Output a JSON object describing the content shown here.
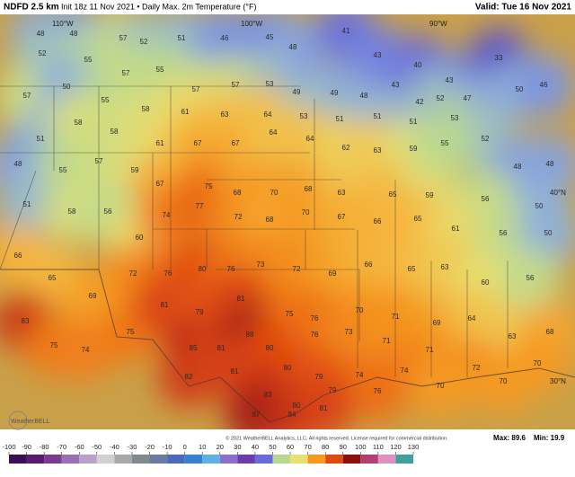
{
  "header": {
    "title": "NDFD 2.5 km",
    "subtitle": "Init 18z 11 Nov 2021 • Daily Max. 2m Temperature (°F)",
    "valid": "Valid: Tue 16 Nov 2021"
  },
  "grid_labels": [
    "110°W",
    "100°W",
    "90°W",
    "40°N",
    "30°N"
  ],
  "logo": "WeatherBELL",
  "copyright": "© 2021 WeatherBELL Analytics, LLC. All rights reserved. License required for commercial distribution.",
  "max": "Max: 89.6",
  "min": "Min: 19.9",
  "colorbar_ticks": [
    -100,
    -90,
    -80,
    -70,
    -60,
    -50,
    -40,
    -30,
    -20,
    -10,
    0,
    10,
    20,
    30,
    40,
    50,
    60,
    70,
    80,
    90,
    100,
    110,
    120,
    130
  ],
  "stations": [
    48,
    48,
    57,
    52,
    51,
    46,
    45,
    48,
    41,
    43,
    40,
    43,
    33,
    52,
    55,
    57,
    55,
    57,
    57,
    53,
    49,
    49,
    48,
    43,
    42,
    52,
    47,
    50,
    46,
    57,
    50,
    55,
    58,
    61,
    63,
    64,
    53,
    51,
    51,
    51,
    53,
    52,
    48,
    48,
    51,
    58,
    58,
    61,
    67,
    67,
    64,
    64,
    62,
    63,
    59,
    55,
    50,
    48,
    55,
    57,
    59,
    67,
    75,
    68,
    70,
    68,
    63,
    65,
    59,
    56,
    51,
    58,
    56,
    60,
    74,
    77,
    72,
    68,
    70,
    67,
    66,
    65,
    61,
    56,
    50,
    66,
    65,
    69,
    72,
    76,
    80,
    76,
    73,
    72,
    69,
    66,
    65,
    63,
    60,
    56,
    83,
    75,
    74,
    75,
    81,
    79,
    81,
    75,
    76,
    70,
    71,
    69,
    64,
    63,
    68,
    85,
    81,
    88,
    80,
    76,
    73,
    71,
    71,
    72,
    70,
    82,
    81,
    80,
    79,
    74,
    74,
    70,
    70,
    83,
    80,
    79,
    76,
    87,
    84,
    81
  ]
}
